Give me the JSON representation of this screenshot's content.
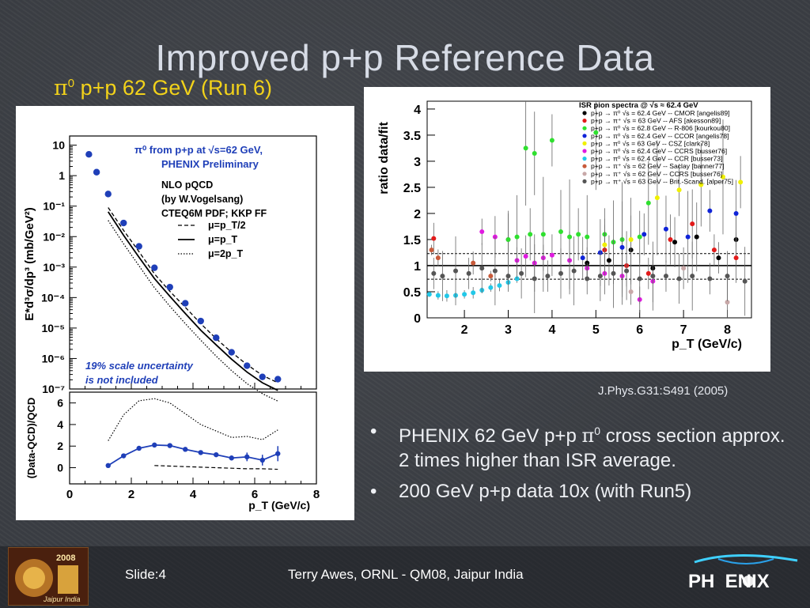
{
  "slide": {
    "title": "Improved p+p Reference Data",
    "subtitle_pi": "π",
    "subtitle_sup": "0",
    "subtitle_rest": " p+p 62 GeV (Run 6)",
    "citation": "J.Phys.G31:S491 (2005)",
    "bullets": [
      {
        "marker": "•",
        "pre": "PHENIX 62 GeV p+p ",
        "pi": "π",
        "sup": "0",
        "post": " cross section approx. 2 times higher than ISR average."
      },
      {
        "marker": "•",
        "pre": "200 GeV p+p data 10x (with Run5)",
        "pi": "",
        "sup": "",
        "post": ""
      }
    ],
    "footer": {
      "slide": "Slide:4",
      "credit": "Terry Awes, ORNL - QM08, Jaipur India",
      "logo_left_text": "2008",
      "logo_left_sub": "Jaipur India",
      "logo_right": "PH  ENIX"
    },
    "colors": {
      "title": "#d7dce6",
      "subtitle": "#f2d21a",
      "phenix_blue": "#1f3fb8"
    }
  },
  "chart_data": [
    {
      "type": "scatter",
      "yscale": "log",
      "legend_title_line1": "π⁰ from p+p at √s=62 GeV,",
      "legend_title_line2": "PHENIX Preliminary",
      "model_text": [
        "NLO pQCD",
        "(by W.Vogelsang)",
        "CTEQ6M PDF; KKP FF"
      ],
      "ylabel": "E*d³σ/dp³ (mb/GeV²)",
      "xlim": [
        0,
        8
      ],
      "ylim": [
        1e-07,
        20
      ],
      "yticks": [
        10,
        1,
        0.1,
        0.01,
        0.001,
        0.0001,
        1e-05,
        1e-06,
        1e-07
      ],
      "ytick_labels": [
        "10",
        "1",
        "10⁻¹",
        "10⁻²",
        "10⁻³",
        "10⁻⁴",
        "10⁻⁵",
        "10⁻⁶",
        "10⁻⁷"
      ],
      "scale_note": [
        "19% scale uncertainty",
        "is not included"
      ],
      "series": [
        {
          "name": "PHENIX data",
          "style": "points",
          "color": "#1f3fb8",
          "x": [
            0.625,
            0.875,
            1.25,
            1.75,
            2.25,
            2.75,
            3.25,
            3.75,
            4.25,
            4.75,
            5.25,
            5.75,
            6.25,
            6.75
          ],
          "y": [
            5.0,
            1.3,
            0.25,
            0.028,
            0.0048,
            0.00095,
            0.00022,
            6.5e-05,
            1.7e-05,
            4.8e-06,
            1.6e-06,
            5.8e-07,
            2.5e-07,
            2.1e-07
          ]
        },
        {
          "name": "μ=p_T/2",
          "style": "dashed",
          "x": [
            1.25,
            1.75,
            2.25,
            2.75,
            3.25,
            3.75,
            4.25,
            4.75,
            5.25,
            5.75,
            6.25,
            6.75
          ],
          "y": [
            0.09,
            0.016,
            0.0032,
            0.0006,
            0.00016,
            4.8e-05,
            1.4e-05,
            4.5e-06,
            1.6e-06,
            6.3e-07,
            2.8e-07,
            1.6e-07
          ]
        },
        {
          "name": "μ=p_T",
          "style": "solid",
          "x": [
            1.25,
            1.75,
            2.25,
            2.75,
            3.25,
            3.75,
            4.25,
            4.75,
            5.25,
            5.75,
            6.25,
            6.75
          ],
          "y": [
            0.065,
            0.011,
            0.0021,
            0.00042,
            0.00011,
            3e-05,
            8.5e-06,
            2.8e-06,
            9.5e-07,
            3.6e-07,
            1.6e-07,
            9e-08
          ]
        },
        {
          "name": "μ=2p_T",
          "style": "dotted",
          "x": [
            1.25,
            1.75,
            2.25,
            2.75,
            3.25,
            3.75,
            4.25,
            4.75,
            5.25,
            5.75,
            6.25,
            6.75
          ],
          "y": [
            0.034,
            0.0058,
            0.0011,
            0.00021,
            5.2e-05,
            1.4e-05,
            4e-06,
            1.2e-06,
            4e-07,
            1.5e-07,
            7e-08,
            4e-08
          ]
        }
      ],
      "legend_labels": [
        "μ=p_T/2",
        "μ=p_T",
        "μ=2p_T"
      ]
    },
    {
      "type": "line",
      "xlabel": "p_T (GeV/c)",
      "ylabel": "(Data-QCD)/QCD",
      "xlim": [
        0,
        8
      ],
      "ylim": [
        -1.5,
        7
      ],
      "xticks": [
        0,
        2,
        4,
        6,
        8
      ],
      "yticks": [
        0,
        2,
        4,
        6
      ],
      "series": [
        {
          "name": "μ=p_T",
          "style": "solid-points",
          "color": "#1f3fb8",
          "x": [
            1.25,
            1.75,
            2.25,
            2.75,
            3.25,
            3.75,
            4.25,
            4.75,
            5.25,
            5.75,
            6.25,
            6.75
          ],
          "y": [
            0.2,
            1.1,
            1.8,
            2.1,
            2.05,
            1.7,
            1.4,
            1.2,
            0.9,
            1.0,
            0.7,
            1.3
          ],
          "err": [
            0,
            0,
            0,
            0,
            0,
            0,
            0,
            0.1,
            0.2,
            0.4,
            0.5,
            0.7
          ]
        },
        {
          "name": "μ=p_T/2",
          "style": "dashed",
          "x": [
            2.75,
            3.25,
            3.75,
            4.25,
            4.75,
            5.25,
            5.75,
            6.25,
            6.75
          ],
          "y": [
            0.2,
            0.15,
            0.1,
            0.05,
            0.0,
            -0.05,
            -0.1,
            -0.1,
            -0.15
          ]
        },
        {
          "name": "μ=2p_T",
          "style": "dotted",
          "x": [
            1.25,
            1.75,
            2.25,
            2.75,
            3.25,
            3.75,
            4.25,
            4.75,
            5.25,
            5.75,
            6.25,
            6.75
          ],
          "y": [
            2.5,
            4.9,
            6.2,
            6.4,
            6.0,
            5.0,
            4.0,
            3.4,
            2.8,
            2.9,
            2.6,
            3.5
          ]
        }
      ]
    },
    {
      "type": "scatter",
      "title": "ISR pion spectra @ √s ≈ 62.4 GeV",
      "xlabel": "p_T (GeV/c)",
      "ylabel": "ratio data/fit",
      "xlim": [
        1.15,
        8.55
      ],
      "ylim": [
        0,
        4.15
      ],
      "xticks": [
        2,
        3,
        4,
        5,
        6,
        7,
        8
      ],
      "yticks": [
        0,
        0.5,
        1,
        1.5,
        2,
        2.5,
        3,
        3.5,
        4
      ],
      "ytick_labels": [
        "0",
        "0.5",
        "1",
        "1.5",
        "2",
        "2.5",
        "3",
        "3.5",
        "4"
      ],
      "reference_lines": [
        1.0,
        1.23,
        0.74
      ],
      "legend": [
        {
          "label": "p+p → π⁰ √s = 62.4 GeV -- CMOR [angelis89]",
          "color": "#000000"
        },
        {
          "label": "p+p → π⁺ √s = 63 GeV -- AFS [akesson89]",
          "color": "#e21a1a"
        },
        {
          "label": "p+p → π⁰ √s = 62.8 GeV -- R-806 [kourkou80]",
          "color": "#2fe02f"
        },
        {
          "label": "p+p → π⁰ √s = 62.4 GeV -- CCOR [angelis78]",
          "color": "#1024d8"
        },
        {
          "label": "p+p → π⁰ √s = 63 GeV -- CSZ [clark78]",
          "color": "#f0f000"
        },
        {
          "label": "p+p → π⁰ √s = 62.4 GeV -- CCRS [busser76]",
          "color": "#e01ae0"
        },
        {
          "label": "p+p → π⁰ √s = 62.4 GeV -- CCR [busser73]",
          "color": "#22c8e8"
        },
        {
          "label": "p+p → π⁺ √s = 62 GeV -- Saclay [banner77]",
          "color": "#c85a3a"
        },
        {
          "label": "p+p → π⁺ √s = 62 GeV -- CCRS [busser76]",
          "color": "#c8a8a8"
        },
        {
          "label": "p+p → π⁺ √s = 63 GeV -- Brit.-Scand. [alper75]",
          "color": "#555555"
        }
      ],
      "series": [
        {
          "name": "CCR [busser73]",
          "color": "#22c8e8",
          "x": [
            1.2,
            1.4,
            1.6,
            1.8,
            2.0,
            2.2,
            2.4,
            2.6,
            2.8,
            3.0,
            3.2
          ],
          "y": [
            0.45,
            0.43,
            0.42,
            0.43,
            0.45,
            0.48,
            0.53,
            0.58,
            0.62,
            0.68,
            0.75
          ],
          "err": 0.05
        },
        {
          "name": "CCRS [busser76]",
          "color": "#e01ae0",
          "x": [
            2.4,
            2.7,
            3.0,
            3.2,
            3.4,
            3.6,
            3.8,
            4.0,
            4.4,
            4.8,
            5.2,
            5.6,
            6.0,
            6.3
          ],
          "y": [
            1.65,
            1.55,
            1.5,
            1.1,
            1.18,
            1.05,
            1.15,
            1.2,
            1.1,
            0.95,
            0.85,
            0.8,
            0.35,
            0.7
          ],
          "err": 0.25
        },
        {
          "name": "R-806 [kourkou80]",
          "color": "#2fe02f",
          "x": [
            3.0,
            3.2,
            3.4,
            3.5,
            3.6,
            3.8,
            4.0,
            4.2,
            4.4,
            4.6,
            4.8,
            5.0,
            5.2,
            5.4,
            5.6,
            6.0,
            6.2
          ],
          "y": [
            1.5,
            1.55,
            3.25,
            1.6,
            3.15,
            1.6,
            3.4,
            1.65,
            1.55,
            1.6,
            1.55,
            3.55,
            1.6,
            1.45,
            1.5,
            1.55,
            2.2
          ],
          "err": 0.5
        },
        {
          "name": "CMOR [angelis89]",
          "color": "#000000",
          "x": [
            4.8,
            5.3,
            5.8,
            6.3,
            6.8,
            7.3,
            7.8,
            8.2
          ],
          "y": [
            1.05,
            1.1,
            1.3,
            0.95,
            1.45,
            1.55,
            1.15,
            1.5
          ],
          "err": 0.3
        },
        {
          "name": "AFS [akesson89]",
          "color": "#e21a1a",
          "x": [
            1.3,
            5.2,
            5.7,
            6.2,
            6.7,
            7.2,
            7.7,
            8.2
          ],
          "y": [
            1.52,
            1.3,
            1.0,
            0.85,
            1.5,
            1.8,
            1.3,
            1.15
          ],
          "err": 0.3
        },
        {
          "name": "CCOR [angelis78]",
          "color": "#1024d8",
          "x": [
            4.7,
            5.1,
            5.6,
            6.1,
            6.6,
            7.1,
            7.6,
            8.2
          ],
          "y": [
            1.15,
            1.25,
            1.35,
            1.6,
            1.7,
            1.55,
            2.05,
            2.0
          ],
          "err": 0.4
        },
        {
          "name": "CSZ [clark78]",
          "color": "#f0f000",
          "x": [
            5.2,
            5.8,
            6.4,
            6.9,
            7.4,
            7.9,
            8.3
          ],
          "y": [
            1.4,
            1.5,
            2.3,
            2.45,
            2.55,
            2.7,
            2.6
          ],
          "err": 0.5
        },
        {
          "name": "Saclay [banner77]",
          "color": "#c85a3a",
          "x": [
            1.25,
            1.4,
            2.2,
            2.6
          ],
          "y": [
            1.3,
            1.15,
            1.05,
            0.8
          ],
          "err": 0.1
        },
        {
          "name": "CCRS π⁺ [busser76]",
          "color": "#c8a8a8",
          "x": [
            5.8,
            7.0,
            8.0
          ],
          "y": [
            0.5,
            0.95,
            0.3
          ],
          "err": 0.25
        },
        {
          "name": "Brit.-Scand. [alper75]",
          "color": "#555555",
          "x": [
            1.3,
            1.5,
            1.8,
            2.1,
            2.4,
            2.7,
            3.0,
            3.3,
            3.6,
            3.9,
            4.2,
            4.5,
            4.8,
            5.1,
            5.4,
            5.7,
            6.0,
            6.3,
            6.6,
            6.9,
            7.2,
            7.6,
            8.0,
            8.4
          ],
          "y": [
            0.85,
            0.8,
            0.9,
            0.85,
            0.95,
            0.9,
            0.8,
            0.85,
            0.75,
            0.8,
            0.85,
            0.9,
            0.75,
            0.8,
            0.85,
            0.9,
            0.75,
            0.8,
            0.8,
            0.75,
            0.8,
            0.75,
            0.8,
            0.7
          ],
          "err": 0.3
        }
      ]
    }
  ]
}
